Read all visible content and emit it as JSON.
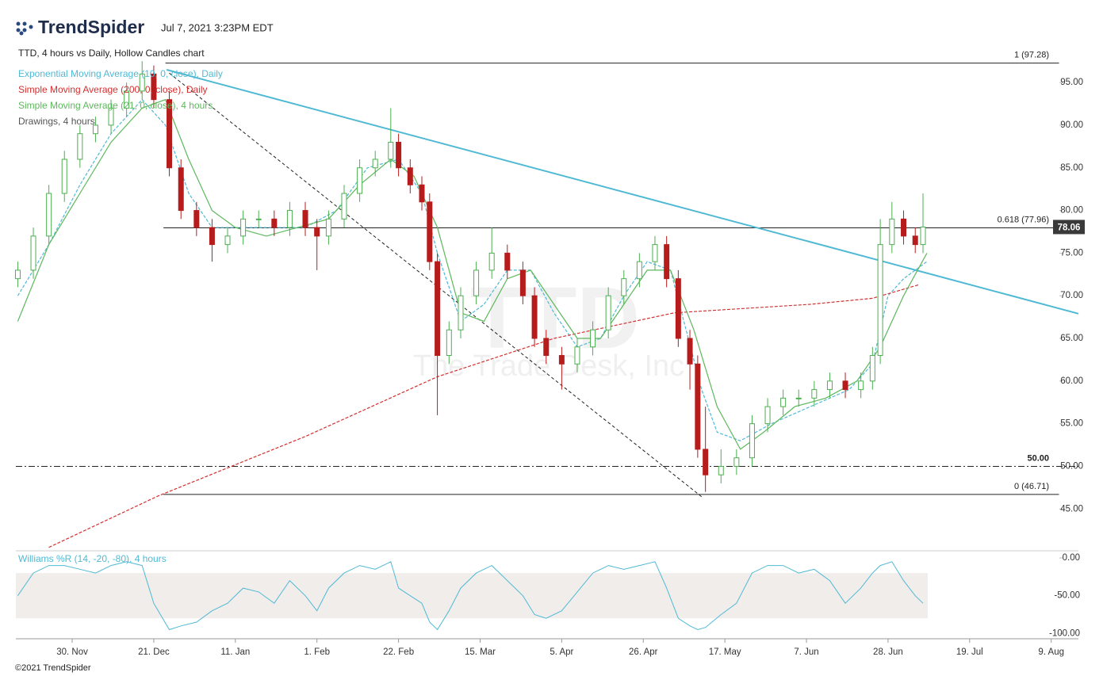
{
  "chart_data": {
    "type": "candlestick",
    "brand": "TrendSpider",
    "timestamp": "Jul 7, 2021 3:23PM EDT",
    "title": "TTD, 4 hours vs Daily, Hollow Candles chart",
    "watermark": "TTD",
    "watermark_name": "The Trade Desk, Inc",
    "footer": "©2021 TrendSpider",
    "x": [
      -14,
      -10,
      -6,
      -2,
      2,
      6,
      10,
      14,
      18,
      21,
      25,
      28,
      32,
      36,
      40,
      44,
      48,
      52,
      56,
      60,
      63,
      66,
      70,
      74,
      78,
      82,
      84,
      87,
      90,
      92,
      94,
      97,
      100,
      104,
      108,
      112,
      116,
      119,
      122,
      126,
      130,
      134,
      138,
      142,
      146,
      150,
      153,
      156,
      159,
      161,
      163,
      167,
      171,
      175,
      179,
      183,
      187,
      191,
      195,
      199,
      203,
      206,
      208,
      211,
      214,
      217,
      219
    ],
    "open": [
      72,
      73,
      77,
      82,
      86,
      89,
      90,
      92,
      94,
      96,
      93,
      85,
      80,
      78,
      76,
      77,
      79,
      79,
      78,
      80,
      78,
      77,
      79,
      82,
      85,
      86,
      88,
      85,
      83,
      81,
      74,
      63,
      66,
      70,
      73,
      75,
      73,
      70,
      65,
      63,
      62,
      64,
      66,
      70,
      72,
      74,
      76,
      72,
      65,
      62,
      52,
      49,
      50,
      51,
      55,
      57,
      58,
      58,
      59,
      60,
      59,
      60,
      63,
      76,
      79,
      77,
      76
    ],
    "high": [
      74,
      78,
      83,
      87,
      90,
      91,
      93,
      95,
      97.5,
      97,
      94,
      86,
      81,
      79,
      78,
      80,
      80,
      80,
      81,
      81,
      79,
      80,
      83,
      86,
      87,
      92,
      89,
      86,
      84,
      82,
      75,
      67,
      71,
      74,
      78,
      76,
      74,
      71,
      66,
      64,
      65,
      67,
      71,
      73,
      75,
      77,
      77,
      73,
      66,
      63,
      57,
      52,
      52,
      56,
      58,
      59,
      59,
      60,
      61,
      61,
      61,
      64,
      79,
      81,
      80,
      78,
      82
    ],
    "low": [
      71,
      72,
      76,
      81,
      85,
      88,
      89,
      91,
      93,
      92,
      84,
      79,
      77,
      74,
      75,
      76,
      78,
      77,
      77,
      77,
      73,
      76,
      78,
      81,
      84,
      85,
      84,
      82,
      80,
      73,
      56,
      62,
      65,
      69,
      72,
      72,
      69,
      64,
      62,
      59,
      61,
      63,
      65,
      69,
      71,
      73,
      71,
      64,
      59,
      51,
      47,
      48,
      49,
      50,
      54,
      56,
      57,
      57,
      58,
      58,
      58,
      59,
      62,
      75,
      76,
      75,
      75
    ],
    "close": [
      73,
      77,
      82,
      86,
      89,
      90,
      92,
      94,
      96,
      93,
      85,
      80,
      78,
      76,
      77,
      79,
      79,
      78,
      80,
      78,
      77,
      79,
      82,
      85,
      86,
      88,
      85,
      83,
      81,
      74,
      63,
      66,
      70,
      73,
      75,
      73,
      70,
      65,
      63,
      62,
      64,
      66,
      70,
      72,
      74,
      76,
      72,
      65,
      62,
      52,
      49,
      50,
      51,
      55,
      57,
      58,
      58,
      59,
      60,
      59,
      60,
      63,
      76,
      79,
      77,
      76,
      78.06
    ],
    "up_color": "#4caf50",
    "down_color": "#b71c1c",
    "last_price": 78.06,
    "xlim": [
      -14.5,
      259
    ],
    "ylim": [
      40.1,
      99.1
    ],
    "xticks": [
      {
        "value": 0,
        "label": "30. Nov"
      },
      {
        "value": 21,
        "label": "21. Dec"
      },
      {
        "value": 42,
        "label": "11. Jan"
      },
      {
        "value": 63,
        "label": "1. Feb"
      },
      {
        "value": 84,
        "label": "22. Feb"
      },
      {
        "value": 105,
        "label": "15. Mar"
      },
      {
        "value": 126,
        "label": "5. Apr"
      },
      {
        "value": 147,
        "label": "26. Apr"
      },
      {
        "value": 168,
        "label": "17. May"
      },
      {
        "value": 189,
        "label": "7. Jun"
      },
      {
        "value": 210,
        "label": "28. Jun"
      },
      {
        "value": 231,
        "label": "19. Jul"
      },
      {
        "value": 252,
        "label": "9. Aug"
      }
    ],
    "yticks": [
      {
        "value": 45,
        "label": "45.00"
      },
      {
        "value": 50,
        "label": "50.00"
      },
      {
        "value": 55,
        "label": "55.00"
      },
      {
        "value": 60,
        "label": "60.00"
      },
      {
        "value": 65,
        "label": "65.00"
      },
      {
        "value": 70,
        "label": "70.00"
      },
      {
        "value": 75,
        "label": "75.00"
      },
      {
        "value": 80,
        "label": "80.00"
      },
      {
        "value": 85,
        "label": "85.00"
      },
      {
        "value": 90,
        "label": "90.00"
      },
      {
        "value": 95,
        "label": "95.00"
      }
    ],
    "overlays": [
      {
        "name": "Exponential Moving Average (10, 0, close), Daily",
        "color": "#4fb9d4",
        "dash": true,
        "x": [
          -14,
          -6,
          2,
          10,
          18,
          24,
          30,
          36,
          44,
          52,
          60,
          68,
          76,
          84,
          90,
          94,
          100,
          106,
          112,
          118,
          124,
          130,
          136,
          142,
          148,
          154,
          158,
          162,
          166,
          172,
          180,
          190,
          200,
          206,
          210,
          214,
          220
        ],
        "values": [
          70,
          76,
          83,
          89,
          93,
          90,
          82,
          78,
          78,
          78,
          78,
          80,
          85,
          86,
          82,
          75,
          67,
          69,
          73,
          73,
          68,
          64,
          65,
          70,
          74,
          73,
          66,
          59,
          54,
          53,
          55,
          57,
          59,
          62,
          70,
          72,
          74
        ]
      },
      {
        "name": "Simple Moving Average (200, 0, close), Daily",
        "color": "#d32f2f",
        "dash": true,
        "x": [
          -6,
          22,
          60,
          94,
          124,
          155,
          190,
          206,
          218
        ],
        "values": [
          40.5,
          46.5,
          53.5,
          60.5,
          65,
          68,
          69,
          69.7,
          71.3
        ]
      },
      {
        "name": "Simple Moving Average (21, 0, close), 4 hours",
        "color": "#5cb85c",
        "dash": false,
        "x": [
          -14,
          -6,
          2,
          10,
          18,
          24,
          30,
          36,
          42,
          50,
          58,
          66,
          74,
          82,
          88,
          94,
          100,
          106,
          112,
          118,
          124,
          130,
          136,
          142,
          148,
          154,
          160,
          166,
          172,
          178,
          186,
          194,
          202,
          208,
          214,
          220
        ],
        "values": [
          67,
          76,
          82,
          88,
          92,
          93,
          86,
          80,
          78,
          77,
          78,
          79,
          83,
          86,
          84,
          78,
          68,
          67,
          72,
          73,
          69,
          65,
          65,
          69,
          73,
          73,
          66,
          57,
          52,
          54,
          57,
          58,
          60,
          64,
          70,
          75
        ]
      }
    ],
    "drawings_name": "Drawings, 4 hours",
    "trendlines": [
      {
        "color": "#4fb9d4",
        "dash": false,
        "x": [
          24.3,
          259
        ],
        "values": [
          96.5,
          67.9
        ]
      },
      {
        "color": "#222222",
        "dash": true,
        "x": [
          25,
          162.4
        ],
        "values": [
          96.1,
          46.3
        ]
      }
    ],
    "levels": [
      {
        "label": "1 (97.28)",
        "value": 97.28,
        "x": [
          24,
          254
        ]
      },
      {
        "label": "0.618 (77.96)",
        "value": 77.96,
        "x": [
          23.5,
          254
        ]
      },
      {
        "label": "0 (46.71)",
        "value": 46.71,
        "x": [
          23.5,
          254
        ]
      },
      {
        "label": "50.00",
        "value": 50,
        "x": [
          -14.5,
          259
        ],
        "dashdot": true
      }
    ],
    "indicator": {
      "name": "Williams %R (14, -20, -80), 4 hours",
      "color": "#4fb9d4",
      "values": [
        -50,
        -20,
        -10,
        -10,
        -15,
        -20,
        -10,
        -5,
        -10,
        -60,
        -95,
        -90,
        -85,
        -70,
        -60,
        -40,
        -45,
        -60,
        -30,
        -50,
        -70,
        -40,
        -20,
        -10,
        -15,
        -5,
        -40,
        -50,
        -60,
        -85,
        -95,
        -70,
        -40,
        -20,
        -10,
        -30,
        -50,
        -75,
        -80,
        -70,
        -45,
        -20,
        -10,
        -15,
        -10,
        -5,
        -40,
        -80,
        -90,
        -95,
        -92,
        -75,
        -60,
        -20,
        -10,
        -10,
        -20,
        -15,
        -30,
        -60,
        -40,
        -20,
        -10,
        -5,
        -30,
        -50,
        -60
      ],
      "band": [
        -80,
        -20
      ],
      "ylim": [
        -106,
        9.5
      ],
      "yticks": [
        {
          "value": 0,
          "label": "0.00"
        },
        {
          "value": -50,
          "label": "-50.00"
        },
        {
          "value": -100,
          "label": "-100.00"
        }
      ]
    }
  }
}
